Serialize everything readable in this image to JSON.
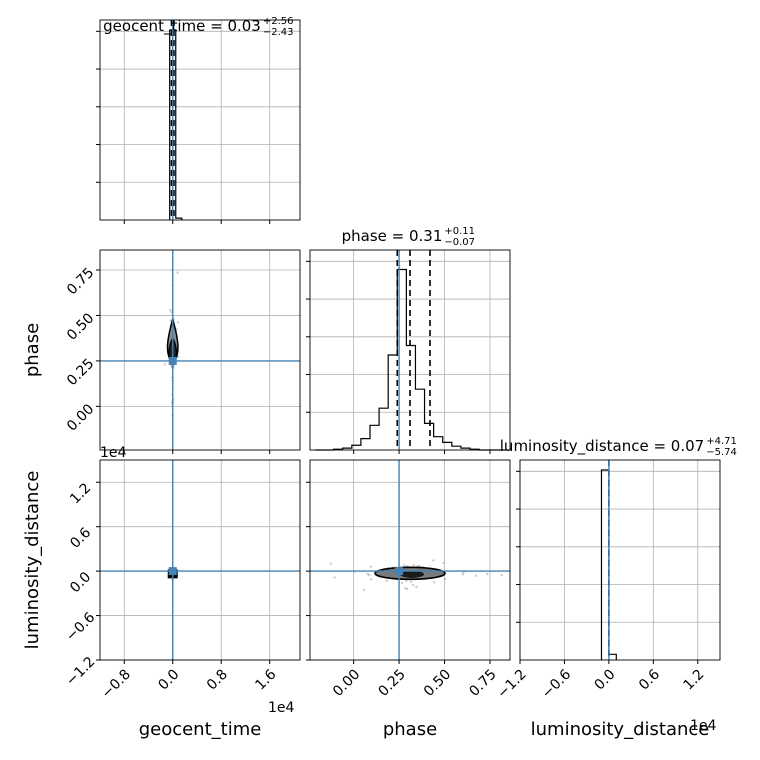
{
  "chart_data": {
    "type": "scatter",
    "subtype": "corner-plot",
    "parameters": [
      "geocent_time",
      "phase",
      "luminosity_distance"
    ],
    "truth_color": "#4682b4",
    "truths": {
      "geocent_time": 0,
      "phase": 0.25,
      "luminosity_distance": 0
    },
    "titles": [
      {
        "name": "geocent_time",
        "value": "0.03",
        "plus": "+2.56",
        "minus": "−2.43"
      },
      {
        "name": "phase",
        "value": "0.31",
        "plus": "+0.11",
        "minus": "−0.07"
      },
      {
        "name": "luminosity_distance",
        "value": "0.07",
        "plus": "+4.71",
        "minus": "−5.74"
      }
    ],
    "axes": {
      "geocent_time": {
        "label": "geocent_time",
        "range": [
          -1.2,
          2.1
        ],
        "ticks": [
          -0.8,
          0.0,
          0.8,
          1.6
        ],
        "tick_labels": [
          "−0.8",
          "0.0",
          "0.8",
          "1.6"
        ],
        "offset_label": "1e4"
      },
      "phase": {
        "label": "phase",
        "range": [
          -0.24,
          0.86
        ],
        "ticks": [
          0.0,
          0.25,
          0.5,
          0.75
        ],
        "tick_labels": [
          "0.00",
          "0.25",
          "0.50",
          "0.75"
        ],
        "offset_label": ""
      },
      "luminosity_distance": {
        "label": "luminosity_distance",
        "range": [
          -1.2,
          1.5
        ],
        "ticks": [
          -1.2,
          -0.6,
          0.0,
          0.6,
          1.2
        ],
        "tick_labels": [
          "−1.2",
          "−0.6",
          "0.0",
          "0.6",
          "1.2"
        ],
        "offset_label": "1e4"
      }
    },
    "histograms": {
      "geocent_time": {
        "edges": [
          -0.05,
          0.05,
          0.15
        ],
        "counts": [
          1.0,
          0.01
        ],
        "quantiles": [
          -0.02,
          0.0,
          0.02
        ]
      },
      "phase": {
        "edges": [
          -0.21,
          -0.16,
          -0.11,
          -0.06,
          -0.01,
          0.04,
          0.09,
          0.14,
          0.19,
          0.24,
          0.29,
          0.34,
          0.39,
          0.44,
          0.49,
          0.54,
          0.59,
          0.64,
          0.69,
          0.74,
          0.79,
          0.84
        ],
        "counts": [
          0.0,
          0.0,
          0.004,
          0.01,
          0.025,
          0.06,
          0.13,
          0.22,
          0.5,
          0.95,
          0.55,
          0.32,
          0.14,
          0.07,
          0.04,
          0.02,
          0.01,
          0.004,
          0.0,
          0.0,
          0.0
        ],
        "quantiles": [
          0.24,
          0.31,
          0.42
        ]
      },
      "luminosity_distance": {
        "edges": [
          -0.1,
          0.0,
          0.1
        ],
        "counts": [
          1.0,
          0.03
        ],
        "quantiles": [
          0.0
        ]
      }
    },
    "grid": true,
    "legend": "none"
  }
}
